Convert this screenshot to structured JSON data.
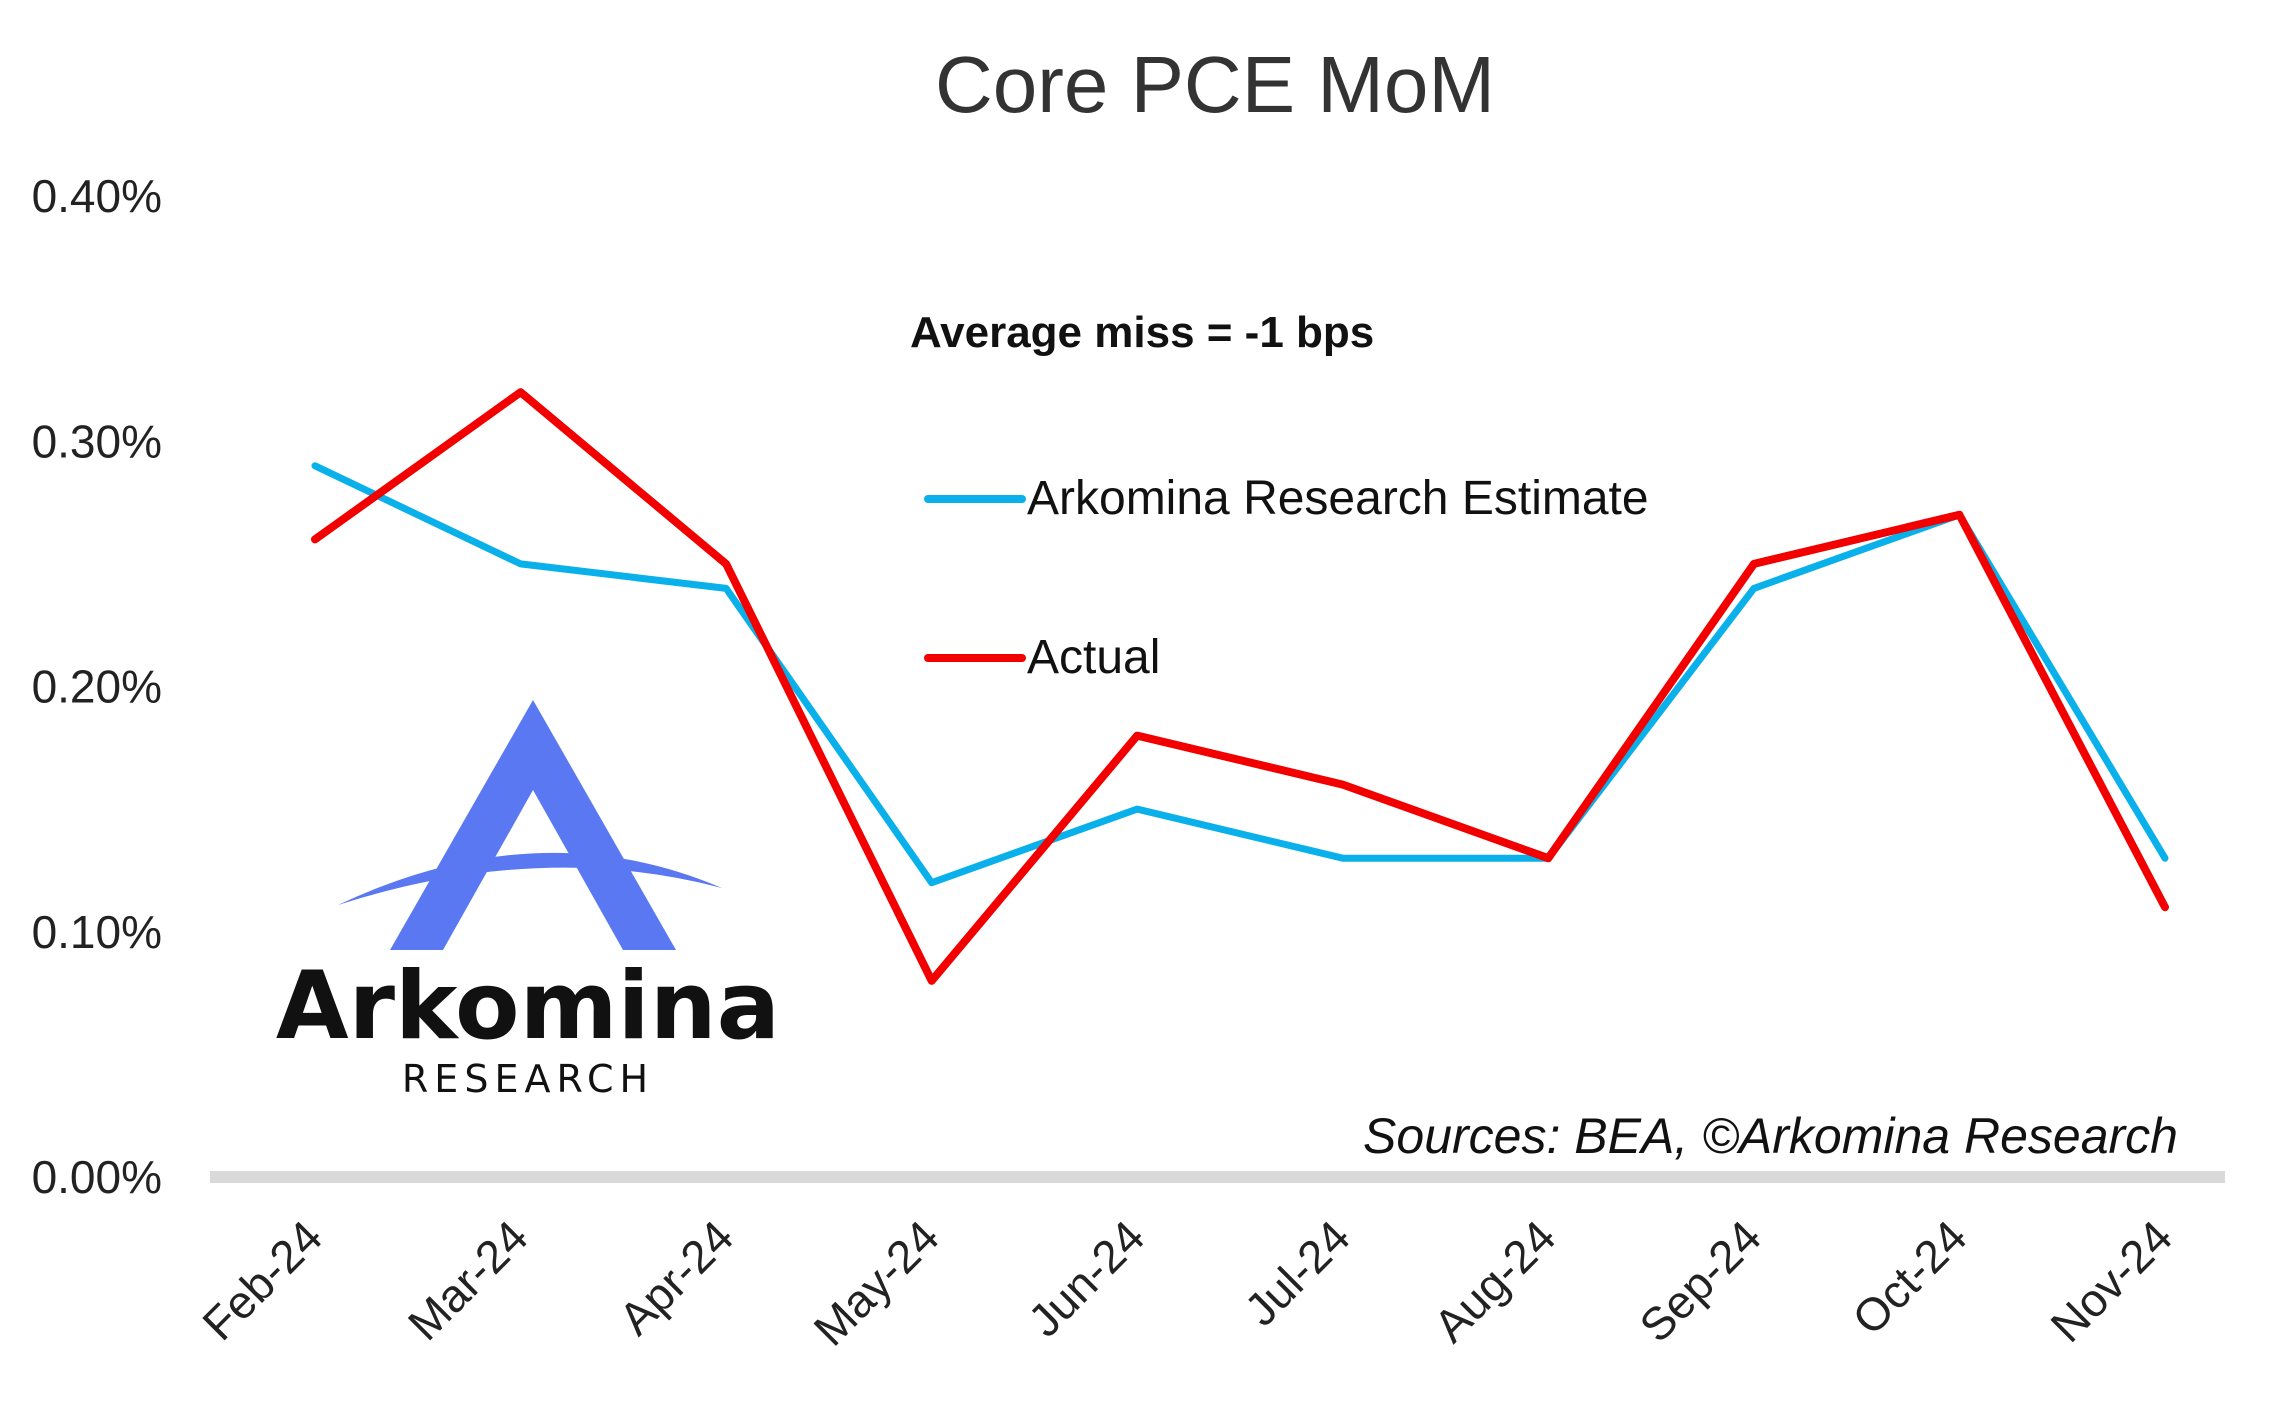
{
  "colors": {
    "estimate": "#0AB0EA",
    "actual": "#F20000",
    "logo_blue": "#5A78F2",
    "baseline": "#D9D9D9"
  },
  "annotation": "Average miss = -1 bps",
  "source": "Sources: BEA, ©Arkomina Research",
  "logo": {
    "word": "Arkomina",
    "sub": "RESEARCH"
  },
  "chart_data": {
    "type": "line",
    "title": "Core PCE MoM",
    "xlabel": "",
    "ylabel": "",
    "categories": [
      "Feb-24",
      "Mar-24",
      "Apr-24",
      "May-24",
      "Jun-24",
      "Jul-24",
      "Aug-24",
      "Sep-24",
      "Oct-24",
      "Nov-24"
    ],
    "y_ticks": [
      "0.00%",
      "0.10%",
      "0.20%",
      "0.30%",
      "0.40%"
    ],
    "ylim": [
      0,
      0.4
    ],
    "y_unit": "%",
    "grid": false,
    "legend_position": "center-right",
    "series": [
      {
        "name": "Arkomina Research Estimate",
        "color": "#0AB0EA",
        "values": [
          0.29,
          0.25,
          0.24,
          0.12,
          0.15,
          0.13,
          0.13,
          0.24,
          0.27,
          0.13
        ]
      },
      {
        "name": "Actual",
        "color": "#F20000",
        "values": [
          0.26,
          0.32,
          0.25,
          0.08,
          0.18,
          0.16,
          0.13,
          0.25,
          0.27,
          0.11
        ]
      }
    ]
  }
}
